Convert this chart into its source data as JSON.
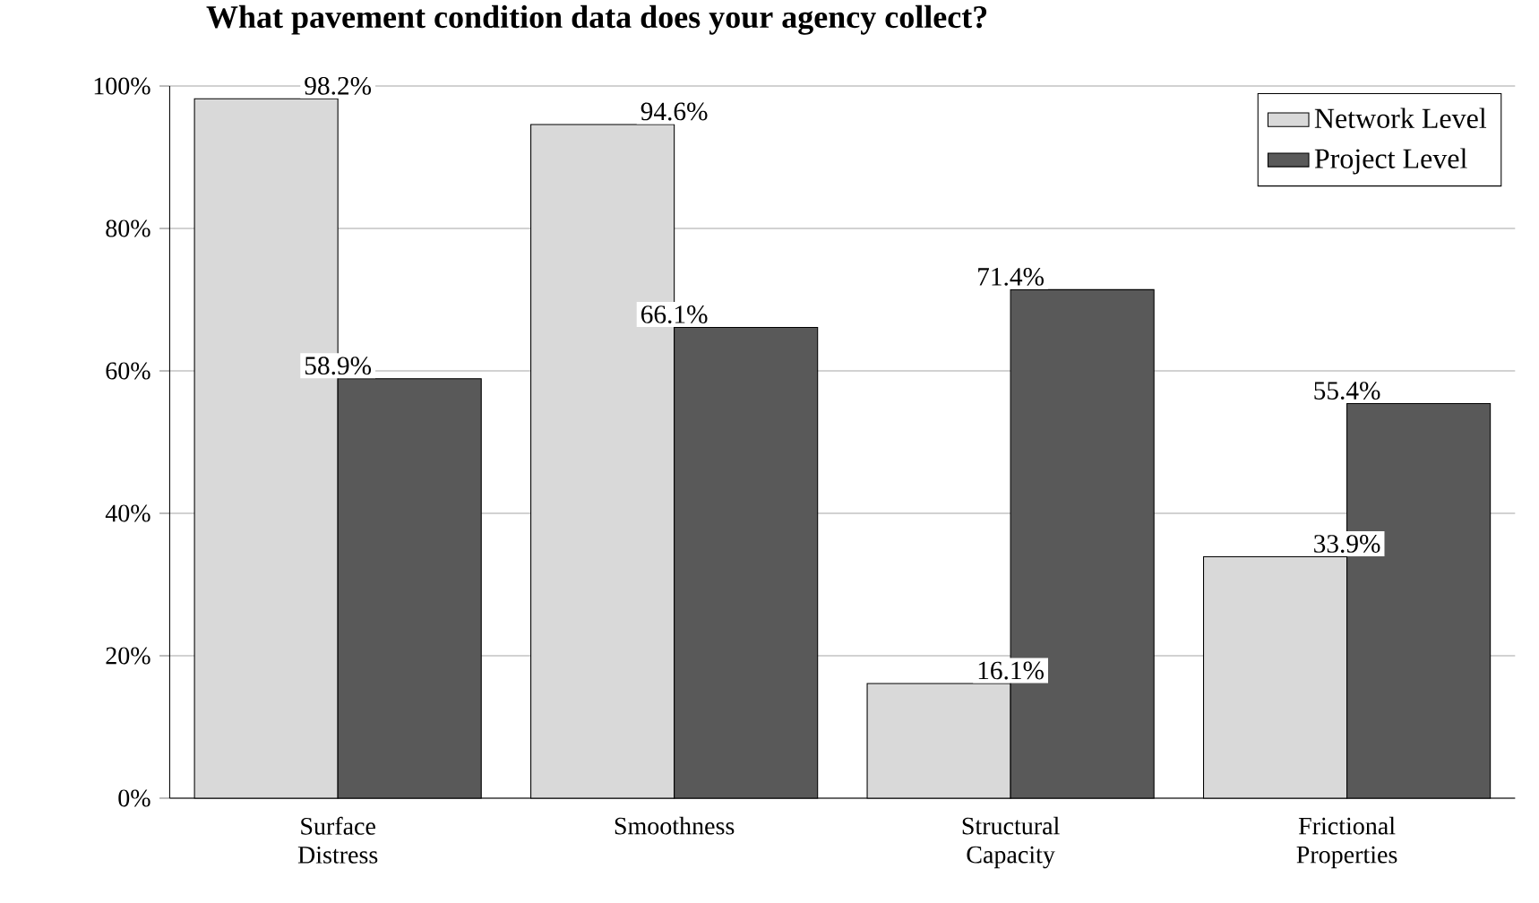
{
  "chart_data": {
    "type": "bar",
    "title": "What pavement condition data does your agency collect?",
    "categories": [
      "Surface Distress",
      "Smoothness",
      "Structural Capacity",
      "Frictional Properties"
    ],
    "series": [
      {
        "name": "Network Level",
        "color": "#d9d9d9",
        "values": [
          98.2,
          94.6,
          16.1,
          33.9
        ],
        "value_labels": [
          "98.2%",
          "94.6%",
          "16.1%",
          "33.9%"
        ]
      },
      {
        "name": "Project Level",
        "color": "#595959",
        "values": [
          58.9,
          66.1,
          71.4,
          55.4
        ],
        "value_labels": [
          "58.9%",
          "66.1%",
          "71.4%",
          "55.4%"
        ]
      }
    ],
    "ylim": [
      0,
      100
    ],
    "yticks": [
      {
        "value": 0,
        "label": "0%"
      },
      {
        "value": 20,
        "label": "20%"
      },
      {
        "value": 40,
        "label": "40%"
      },
      {
        "value": 60,
        "label": "60%"
      },
      {
        "value": 80,
        "label": "80%"
      },
      {
        "value": 100,
        "label": "100%"
      }
    ],
    "grid": "y",
    "legend": "top right"
  }
}
